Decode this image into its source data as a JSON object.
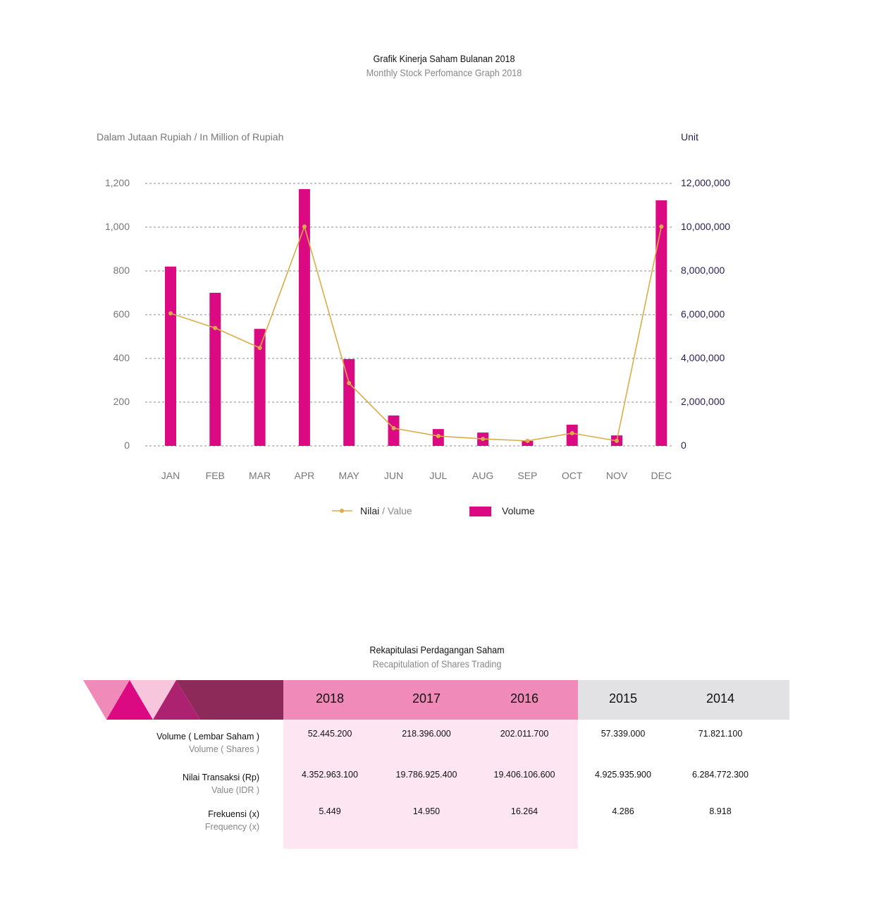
{
  "chart_data": {
    "type": "bar+line",
    "title": "Grafik Kinerja Saham Bulanan 2018",
    "subtitle": "Monthly Stock Perfomance Graph 2018",
    "left_axis_label": "Dalam Jutaan Rupiah / In Million of Rupiah",
    "right_axis_label": "Unit",
    "categories": [
      "JAN",
      "FEB",
      "MAR",
      "APR",
      "MAY",
      "JUN",
      "JUL",
      "AUG",
      "SEP",
      "OCT",
      "NOV",
      "DEC"
    ],
    "left_ticks": [
      "0",
      "200",
      "400",
      "600",
      "800",
      "1,000",
      "1,200"
    ],
    "right_ticks": [
      "0",
      "2,000,000",
      "4,000,000",
      "6,000,000",
      "8,000,000",
      "10,000,000",
      "12,000,000"
    ],
    "ylim_left": [
      0,
      1200
    ],
    "ylim_right": [
      0,
      12000000
    ],
    "grid": true,
    "legend_placement": "bottom",
    "series": [
      {
        "name": "Nilai / Value",
        "legend_main": "Nilai",
        "legend_sub": "/ Value",
        "type": "line",
        "axis": "left",
        "color": "#d9ad47",
        "values": [
          606,
          539,
          448,
          1003,
          287,
          81,
          45,
          32,
          23,
          58,
          23,
          1003
        ]
      },
      {
        "name": "Volume",
        "type": "bar",
        "axis": "right",
        "color": "#dc0a82",
        "values": [
          8200000,
          7000000,
          5350000,
          11740000,
          3970000,
          1390000,
          770000,
          610000,
          230000,
          970000,
          480000,
          11230000
        ]
      }
    ]
  },
  "table": {
    "title": "Rekapitulasi Perdagangan Saham",
    "subtitle": "Recapitulation of Shares Trading",
    "years": [
      "2018",
      "2017",
      "2016",
      "2015",
      "2014"
    ],
    "rows": [
      {
        "label": "Volume ( Lembar Saham )",
        "sublabel": "Volume ( Shares )",
        "values": [
          "52.445.200",
          "218.396.000",
          "202.011.700",
          "57.339.000",
          "71.821.100"
        ]
      },
      {
        "label": "Nilai Transaksi (Rp)",
        "sublabel": "Value (IDR )",
        "values": [
          "4.352.963.100",
          "19.786.925.400",
          "19.406.106.600",
          "4.925.935.900",
          "6.284.772.300"
        ]
      },
      {
        "label": "Frekuensi (x)",
        "sublabel": "Frequency (x)",
        "values": [
          "5.449",
          "14.950",
          "16.264",
          "4.286",
          "8.918"
        ]
      }
    ]
  }
}
